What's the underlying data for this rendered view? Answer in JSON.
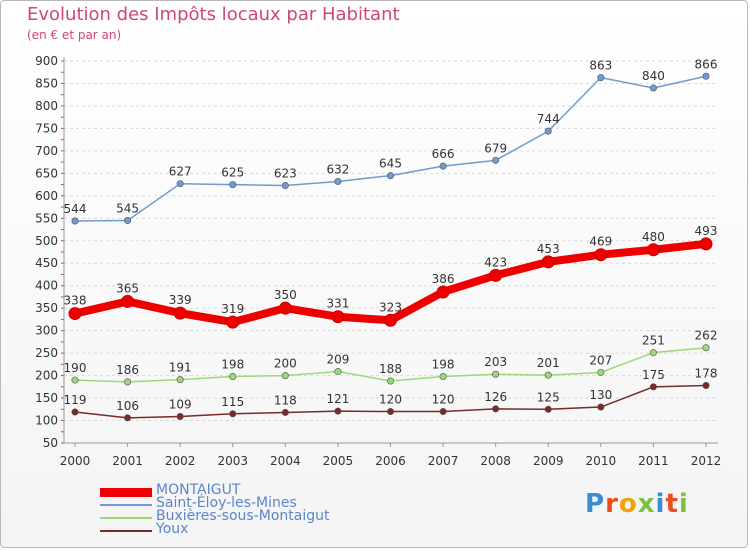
{
  "header": {
    "title": "Evolution des Impôts locaux par Habitant",
    "subtitle": "(en € et par an)"
  },
  "brand": {
    "text": "Proxiti",
    "colors": [
      "#3a8dd4",
      "#e94e1b",
      "#f0a30a",
      "#7cc242",
      "#3a8dd4",
      "#e94e1b",
      "#7cc242"
    ]
  },
  "chart_data": {
    "type": "line",
    "title": "Evolution des Impôts locaux par Habitant",
    "subtitle": "(en € et par an)",
    "xlabel": "",
    "ylabel": "",
    "x": [
      "2000",
      "2001",
      "2002",
      "2003",
      "2004",
      "2005",
      "2006",
      "2007",
      "2008",
      "2009",
      "2010",
      "2011",
      "2012"
    ],
    "ylim": [
      50,
      900
    ],
    "yticks": [
      50,
      100,
      150,
      200,
      250,
      300,
      350,
      400,
      450,
      500,
      550,
      600,
      650,
      700,
      750,
      800,
      850,
      900
    ],
    "grid": "horizontal",
    "legend_position": "bottom-left",
    "series": [
      {
        "name": "MONTAIGUT",
        "color": "#ee0000",
        "emphasis": true,
        "values": [
          338,
          365,
          339,
          319,
          350,
          331,
          323,
          386,
          423,
          453,
          469,
          480,
          493
        ]
      },
      {
        "name": "Saint-Éloy-les-Mines",
        "color": "#6f9bd1",
        "emphasis": false,
        "values": [
          544,
          545,
          627,
          625,
          623,
          632,
          645,
          666,
          679,
          744,
          863,
          840,
          866
        ]
      },
      {
        "name": "Buxières-sous-Montaigut",
        "color": "#9ad97a",
        "emphasis": false,
        "values": [
          190,
          186,
          191,
          198,
          200,
          209,
          188,
          198,
          203,
          201,
          207,
          251,
          262
        ]
      },
      {
        "name": "Youx",
        "color": "#7a2a2a",
        "emphasis": false,
        "values": [
          119,
          106,
          109,
          115,
          118,
          121,
          120,
          120,
          126,
          125,
          130,
          175,
          178
        ]
      }
    ]
  }
}
